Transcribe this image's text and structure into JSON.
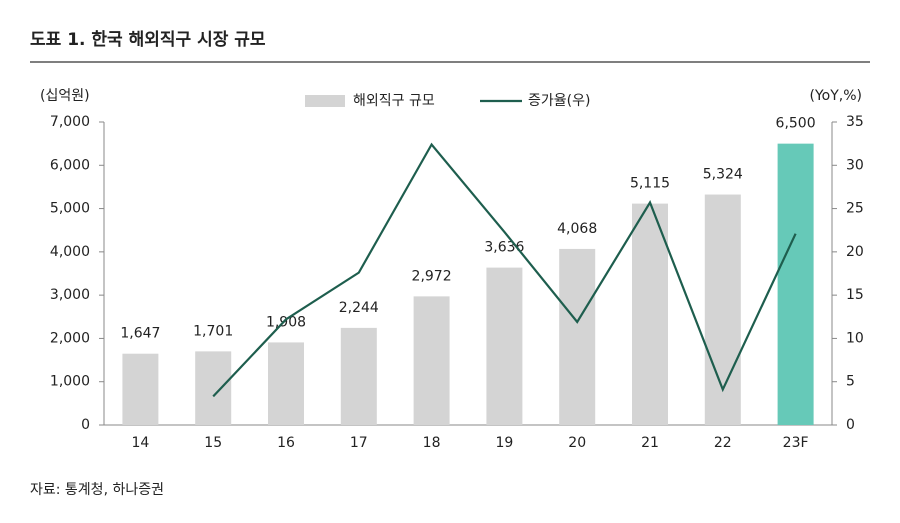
{
  "chart_data": {
    "type": "bar",
    "title": "도표 1. 한국 해외직구 시장 규모",
    "y_label": "(십억원)",
    "y2_label": "(YoY,%)",
    "source": "자료: 통계청, 하나증권",
    "categories": [
      "14",
      "15",
      "16",
      "17",
      "18",
      "19",
      "20",
      "21",
      "22",
      "23F"
    ],
    "series": [
      {
        "name": "해외직구 규모",
        "type": "bar",
        "color": "#d4d4d4",
        "highlight_color": "#66c9b8",
        "highlight_index": 9,
        "values": [
          1647,
          1701,
          1908,
          2244,
          2972,
          3636,
          4068,
          5115,
          5324,
          6500
        ],
        "value_labels": [
          "1,647",
          "1,701",
          "1,908",
          "2,244",
          "2,972",
          "3,636",
          "4,068",
          "5,115",
          "5,324",
          "6,500"
        ]
      },
      {
        "name": "증가율(우)",
        "type": "line",
        "axis": "y2",
        "color": "#1e5e4e",
        "values": [
          null,
          3.3,
          12.2,
          17.6,
          32.4,
          22.3,
          11.9,
          25.7,
          4.1,
          22.1
        ]
      }
    ],
    "ylim": [
      0,
      7000
    ],
    "yticks": [
      0,
      {
        "value": 1000,
        "label": "1,000"
      },
      {
        "value": 2000,
        "label": "2,000"
      },
      {
        "value": 3000,
        "label": "3,000"
      },
      {
        "value": 4000,
        "label": "4,000"
      },
      {
        "value": 5000,
        "label": "5,000"
      },
      {
        "value": 6000,
        "label": "6,000"
      },
      {
        "value": 7000,
        "label": "7,000"
      }
    ],
    "y2lim": [
      0,
      35
    ],
    "y2ticks": [
      0,
      5,
      10,
      15,
      20,
      25,
      30,
      35
    ]
  }
}
